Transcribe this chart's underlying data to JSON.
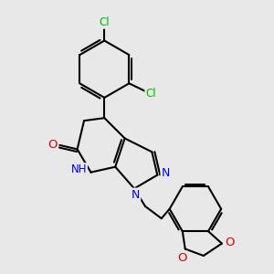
{
  "background_color": "#e8e8e8",
  "bond_color": "#000000",
  "bond_width": 1.5,
  "cl_color": "#00bb00",
  "n_color": "#0000ee",
  "o_color": "#dd0000",
  "fig_width": 3.0,
  "fig_height": 3.0,
  "dpi": 100,
  "xlim": [
    0,
    10
  ],
  "ylim": [
    0,
    10
  ]
}
